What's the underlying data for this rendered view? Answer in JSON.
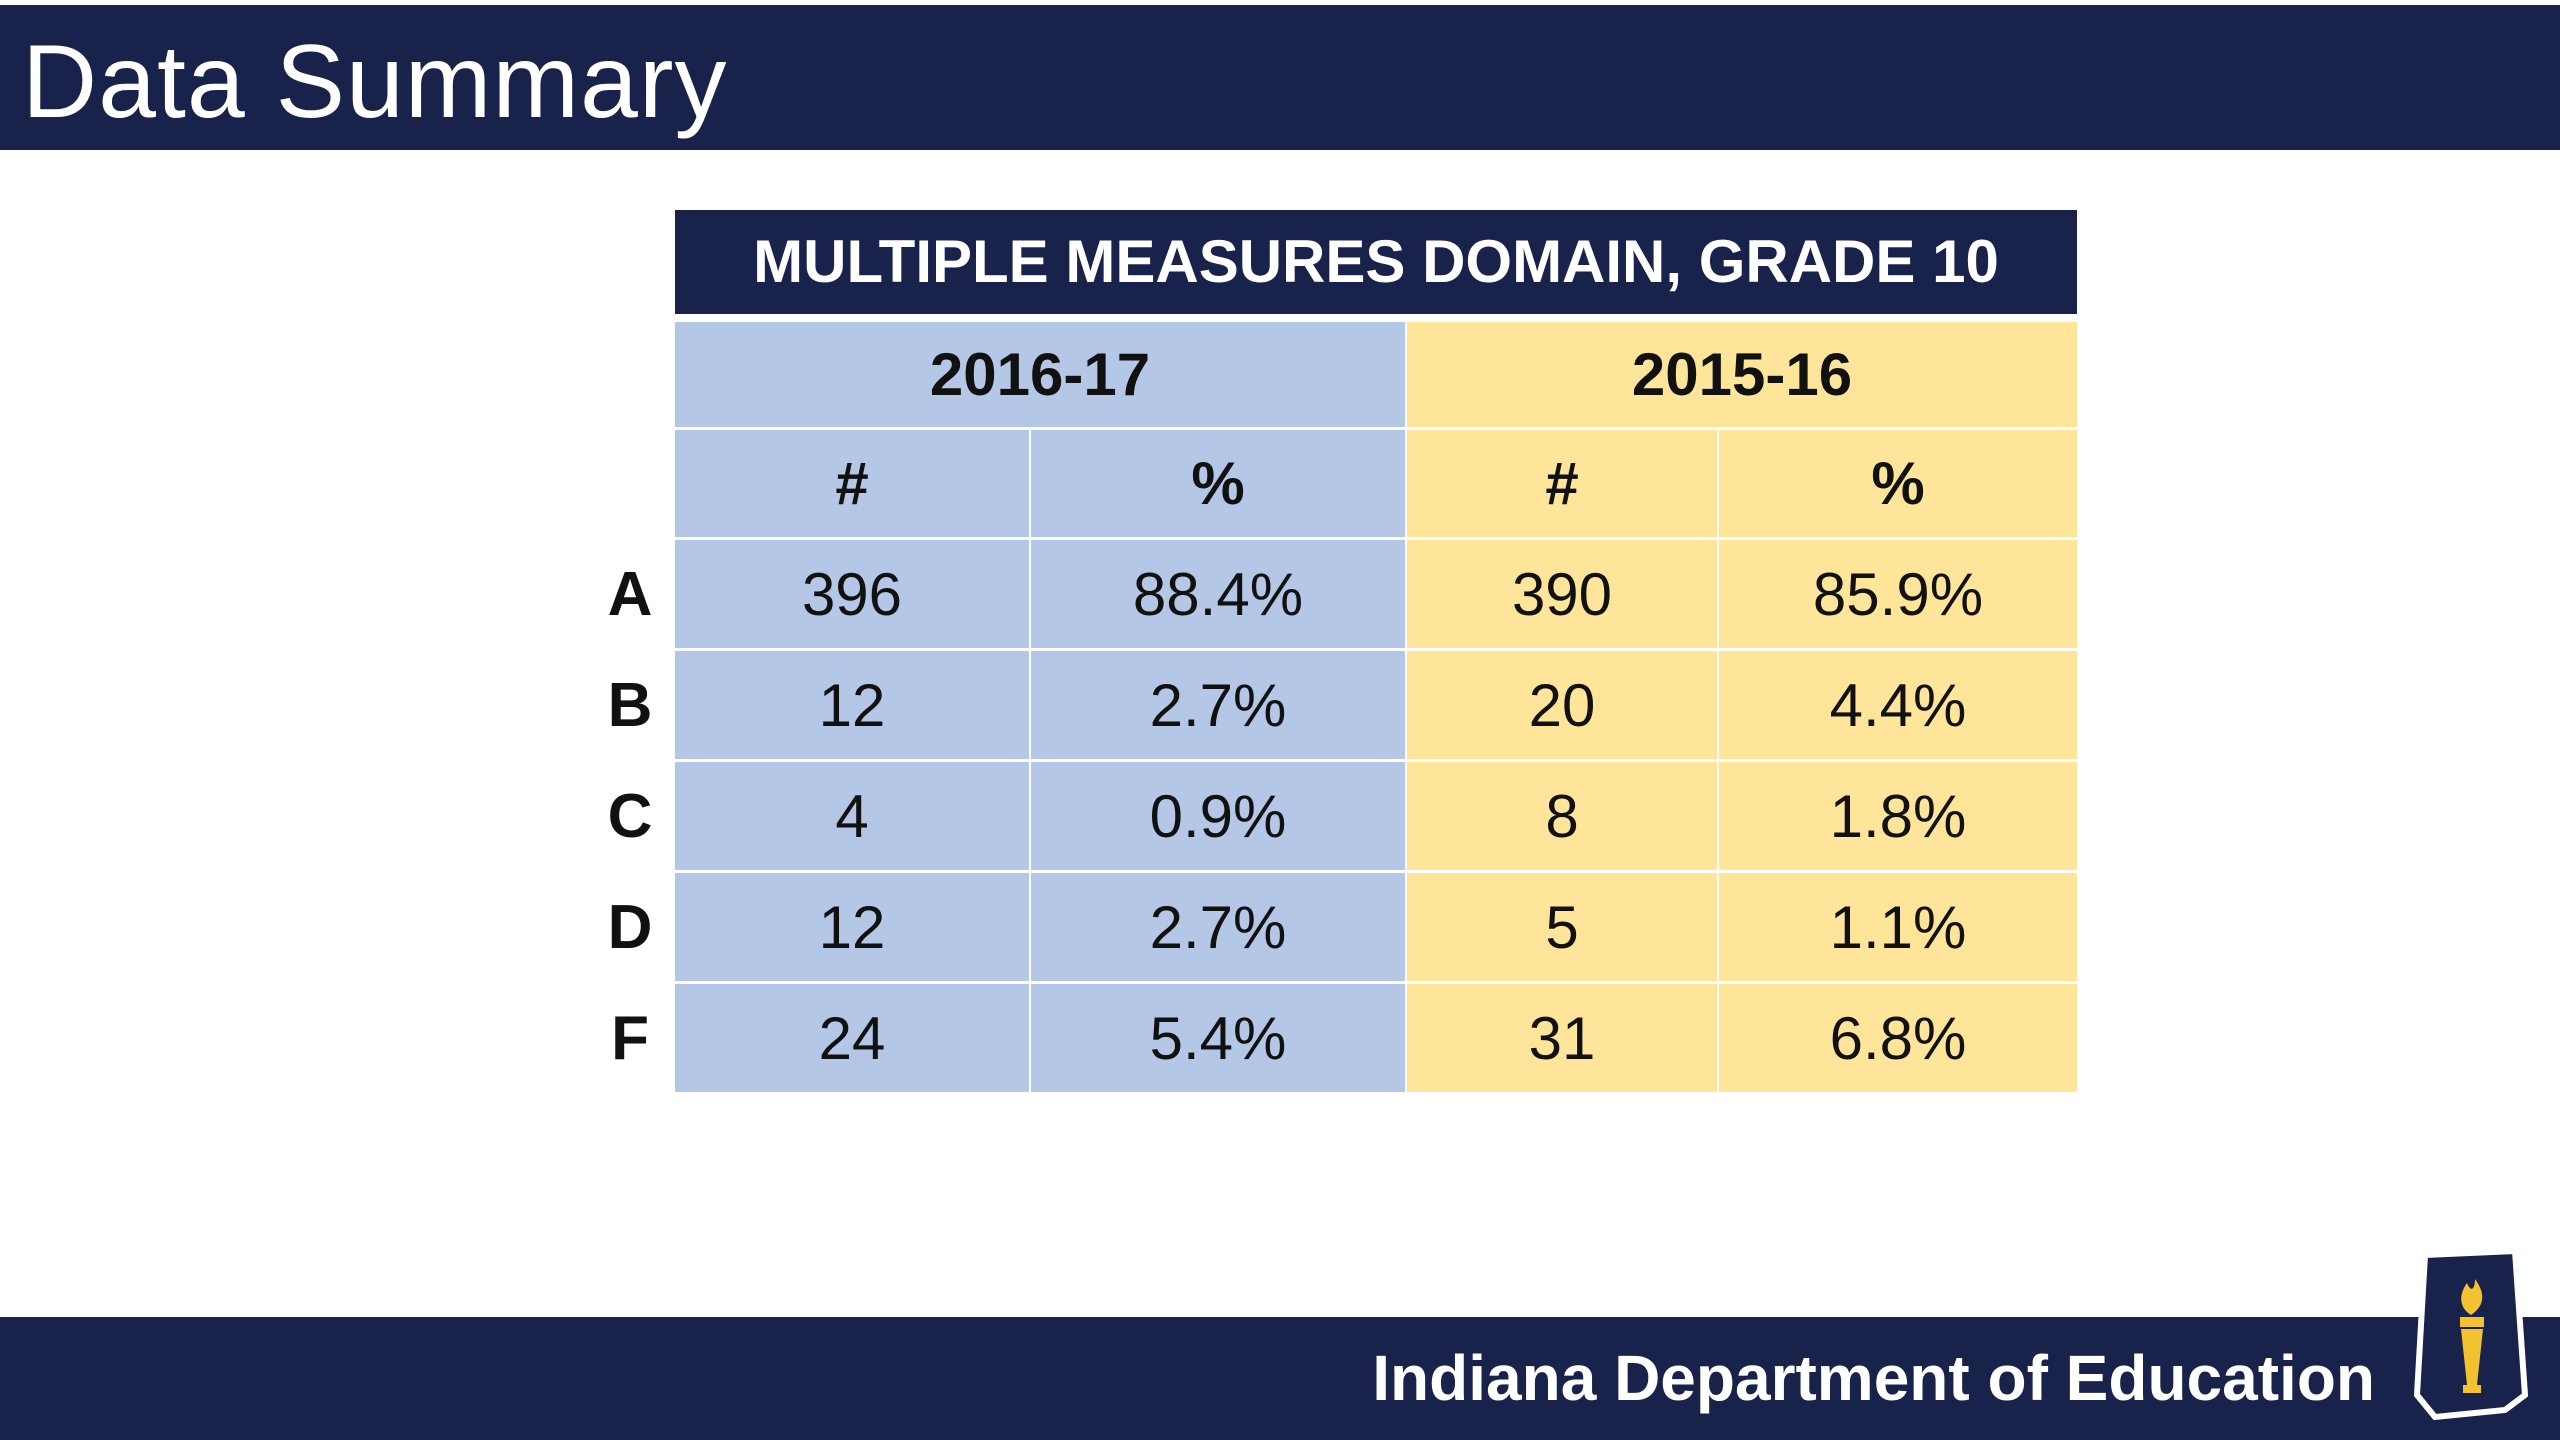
{
  "slide": {
    "title": "Data Summary",
    "footer_org": "Indiana Department of Education"
  },
  "table": {
    "title": "MULTIPLE MEASURES DOMAIN, GRADE 10",
    "years": [
      "2016-17",
      "2015-16"
    ],
    "subheaders": [
      "#",
      "%",
      "#",
      "%"
    ],
    "rows": [
      {
        "grade": "A",
        "n1": "396",
        "p1": "88.4%",
        "n2": "390",
        "p2": "85.9%"
      },
      {
        "grade": "B",
        "n1": "12",
        "p1": "2.7%",
        "n2": "20",
        "p2": "4.4%"
      },
      {
        "grade": "C",
        "n1": "4",
        "p1": "0.9%",
        "n2": "8",
        "p2": "1.8%"
      },
      {
        "grade": "D",
        "n1": "12",
        "p1": "2.7%",
        "n2": "5",
        "p2": "1.1%"
      },
      {
        "grade": "F",
        "n1": "24",
        "p1": "5.4%",
        "n2": "31",
        "p2": "6.8%"
      }
    ]
  },
  "colors": {
    "navy": "#18224a",
    "col_2016_17": "#b4c7e6",
    "col_2015_16": "#ffe599",
    "logo_gold": "#f2c230"
  },
  "icons": {
    "logo": "indiana-torch-logo"
  }
}
